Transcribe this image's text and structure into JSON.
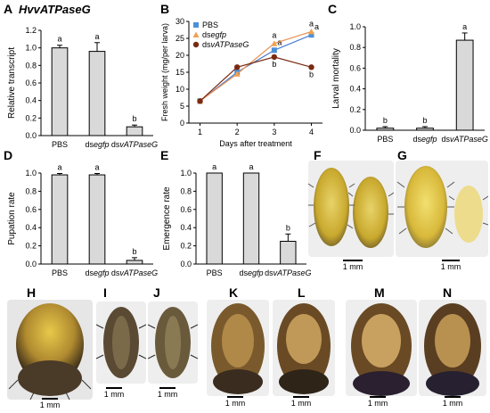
{
  "figure": {
    "panel_labels": [
      "A",
      "B",
      "C",
      "D",
      "E",
      "F",
      "G",
      "H",
      "I",
      "J",
      "K",
      "L",
      "M",
      "N"
    ],
    "panel_a_title": "HvvATPaseG",
    "scale_bar_label": "1 mm"
  },
  "colors": {
    "bar_fill": "#d9d9d9",
    "pbs": "#4a90d9",
    "dsegfp": "#f0a050",
    "dsvATPaseG": "#7a2a10"
  },
  "chart_data": [
    {
      "id": "A",
      "type": "bar",
      "categories": [
        "PBS",
        "dsegfp",
        "dsvATPaseG"
      ],
      "category_display": [
        "PBS",
        "ds",
        "egfp",
        "ds",
        "vATPaseG"
      ],
      "values": [
        1.0,
        0.96,
        0.1
      ],
      "errors": [
        0.03,
        0.1,
        0.02
      ],
      "letters": [
        "a",
        "a",
        "b"
      ],
      "title": "HvvATPaseG",
      "ylabel": "Relative transcript",
      "ylim": [
        0,
        1.2
      ],
      "yticks": [
        "0.0",
        "0.2",
        "0.4",
        "0.6",
        "0.8",
        "1.0",
        "1.2"
      ]
    },
    {
      "id": "B",
      "type": "line",
      "x": [
        1,
        2,
        3,
        4
      ],
      "xlabel": "Days after treatment",
      "ylabel": "Fresh weight (mg/per larva)",
      "ylim": [
        0,
        30
      ],
      "yticks": [
        "0",
        "5",
        "10",
        "15",
        "20",
        "25",
        "30"
      ],
      "xticks": [
        "1",
        "2",
        "3",
        "4"
      ],
      "legend": [
        "PBS",
        "dsegfp",
        "dsvATPaseG"
      ],
      "series": [
        {
          "name": "PBS",
          "values": [
            6.5,
            15,
            21.5,
            26
          ],
          "letters": [
            "",
            "",
            "a",
            "a"
          ]
        },
        {
          "name": "dsegfp",
          "values": [
            6.5,
            14.5,
            23.5,
            27
          ],
          "letters": [
            "",
            "",
            "a",
            "a"
          ]
        },
        {
          "name": "dsvATPaseG",
          "values": [
            6.5,
            16.5,
            19.5,
            16.5
          ],
          "letters": [
            "",
            "",
            "b",
            "b"
          ]
        }
      ]
    },
    {
      "id": "C",
      "type": "bar",
      "categories": [
        "PBS",
        "dsegfp",
        "dsvATPaseG"
      ],
      "values": [
        0.02,
        0.02,
        0.87
      ],
      "errors": [
        0.015,
        0.015,
        0.07
      ],
      "letters": [
        "b",
        "b",
        "a"
      ],
      "ylabel": "Larval mortality",
      "ylim": [
        0,
        1.0
      ],
      "yticks": [
        "0.0",
        "0.2",
        "0.4",
        "0.6",
        "0.8",
        "1.0"
      ]
    },
    {
      "id": "D",
      "type": "bar",
      "categories": [
        "PBS",
        "dsegfp",
        "dsvATPaseG"
      ],
      "values": [
        0.98,
        0.98,
        0.04
      ],
      "errors": [
        0.015,
        0.015,
        0.03
      ],
      "letters": [
        "a",
        "a",
        "b"
      ],
      "ylabel": "Pupation rate",
      "ylim": [
        0,
        1.0
      ],
      "yticks": [
        "0.0",
        "0.2",
        "0.4",
        "0.6",
        "0.8",
        "1.0"
      ]
    },
    {
      "id": "E",
      "type": "bar",
      "categories": [
        "PBS",
        "dsegfp",
        "dsvATPaseG"
      ],
      "values": [
        1.0,
        1.0,
        0.25
      ],
      "errors": [
        0.0,
        0.0,
        0.08
      ],
      "letters": [
        "a",
        "a",
        "b"
      ],
      "ylabel": "Emergence rate",
      "ylim": [
        0,
        1.0
      ],
      "yticks": [
        "0.0",
        "0.2",
        "0.4",
        "0.6",
        "0.8",
        "1.0"
      ]
    }
  ]
}
